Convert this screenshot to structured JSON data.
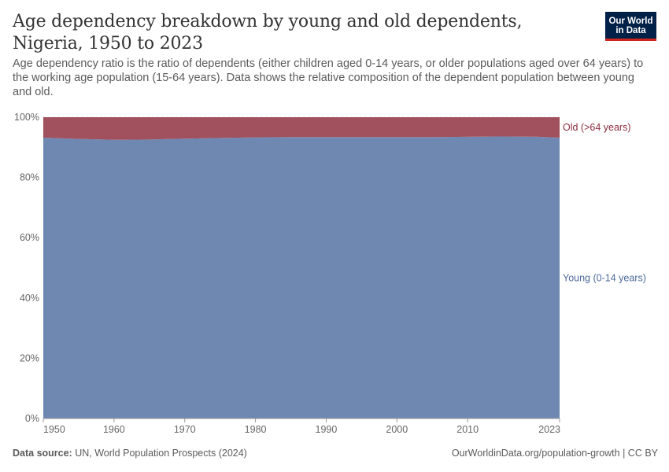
{
  "header": {
    "title": "Age dependency breakdown by young and old dependents, Nigeria, 1950 to 2023",
    "subtitle": "Age dependency ratio is the ratio of dependents (either children aged 0-14 years, or older populations aged over 64 years) to the working age population (15-64 years). Data shows the relative composition of the dependent population between young and old.",
    "logo_line1": "Our World",
    "logo_line2": "in Data"
  },
  "footer": {
    "source_label": "Data source:",
    "source_text": "UN, World Population Prospects (2024)",
    "credit": "OurWorldinData.org/population-growth | CC BY"
  },
  "colors": {
    "young": "#6f88b2",
    "old": "#a1505d",
    "old_label": "#8b2d3e",
    "young_label": "#4c6a9c",
    "grid": "#dddddd",
    "text": "#666666"
  },
  "chart_data": {
    "type": "area",
    "stacked": true,
    "x": [
      1950,
      1955,
      1960,
      1965,
      1970,
      1975,
      1980,
      1985,
      1990,
      1995,
      2000,
      2005,
      2010,
      2015,
      2020,
      2023
    ],
    "series": [
      {
        "name": "Young (0-14 years)",
        "values": [
          93.2,
          92.8,
          92.5,
          92.6,
          92.9,
          93.1,
          93.3,
          93.4,
          93.4,
          93.4,
          93.4,
          93.4,
          93.5,
          93.6,
          93.5,
          93.2
        ]
      },
      {
        "name": "Old (>64 years)",
        "values": [
          6.8,
          7.2,
          7.5,
          7.4,
          7.1,
          6.9,
          6.7,
          6.6,
          6.6,
          6.6,
          6.6,
          6.6,
          6.5,
          6.4,
          6.5,
          6.8
        ]
      }
    ],
    "ylim": [
      0,
      100
    ],
    "yticks": [
      "0%",
      "20%",
      "40%",
      "60%",
      "80%",
      "100%"
    ],
    "xticks": [
      "1950",
      "1960",
      "1970",
      "1980",
      "1990",
      "2000",
      "2010",
      "2023"
    ],
    "xlim": [
      1950,
      2023
    ],
    "legend": "right-inline",
    "grid": true
  }
}
